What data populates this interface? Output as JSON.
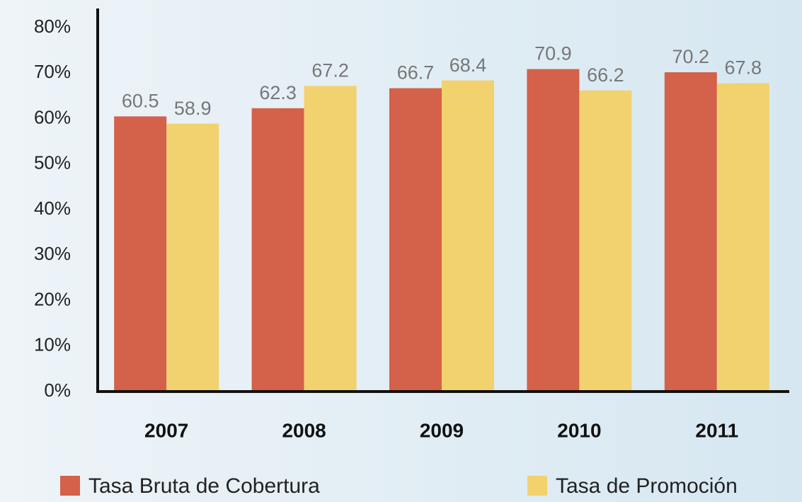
{
  "chart_data": {
    "type": "bar",
    "categories": [
      "2007",
      "2008",
      "2009",
      "2010",
      "2011"
    ],
    "series": [
      {
        "name": "Tasa Bruta de Cobertura",
        "color": "#d4614a",
        "values": [
          60.5,
          62.3,
          66.7,
          70.9,
          70.2
        ]
      },
      {
        "name": "Tasa de Promoción",
        "color": "#f2d26e",
        "values": [
          58.9,
          67.2,
          68.4,
          66.2,
          67.8
        ]
      }
    ],
    "ylim": [
      0,
      85
    ],
    "yticks": [
      {
        "value": 0,
        "label": "0%"
      },
      {
        "value": 10,
        "label": "10%"
      },
      {
        "value": 20,
        "label": "20%"
      },
      {
        "value": 30,
        "label": "30%"
      },
      {
        "value": 40,
        "label": "40%"
      },
      {
        "value": 50,
        "label": "50%"
      },
      {
        "value": 60,
        "label": "60%"
      },
      {
        "value": 70,
        "label": "70%"
      },
      {
        "value": 80,
        "label": "80%"
      }
    ],
    "grid": false
  }
}
